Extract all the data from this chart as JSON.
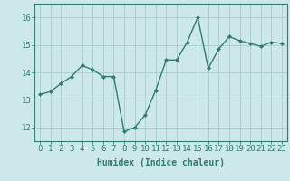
{
  "x": [
    0,
    1,
    2,
    3,
    4,
    5,
    6,
    7,
    8,
    9,
    10,
    11,
    12,
    13,
    14,
    15,
    16,
    17,
    18,
    19,
    20,
    21,
    22,
    23
  ],
  "y": [
    13.2,
    13.3,
    13.6,
    13.85,
    14.25,
    14.1,
    13.85,
    13.85,
    11.85,
    12.0,
    12.45,
    13.35,
    14.45,
    14.45,
    15.1,
    16.0,
    14.15,
    14.85,
    15.3,
    15.15,
    15.05,
    14.95,
    15.1,
    15.05
  ],
  "line_color": "#2e7d6e",
  "marker": "D",
  "marker_size": 2.0,
  "bg_color": "#cce8e8",
  "grid_color": "#aacccc",
  "xlabel": "Humidex (Indice chaleur)",
  "ylim": [
    11.5,
    16.5
  ],
  "xlim": [
    -0.5,
    23.5
  ],
  "yticks": [
    12,
    13,
    14,
    15,
    16
  ],
  "xticks": [
    0,
    1,
    2,
    3,
    4,
    5,
    6,
    7,
    8,
    9,
    10,
    11,
    12,
    13,
    14,
    15,
    16,
    17,
    18,
    19,
    20,
    21,
    22,
    23
  ],
  "xlabel_fontsize": 7,
  "tick_fontsize": 6.5,
  "line_width": 1.0
}
